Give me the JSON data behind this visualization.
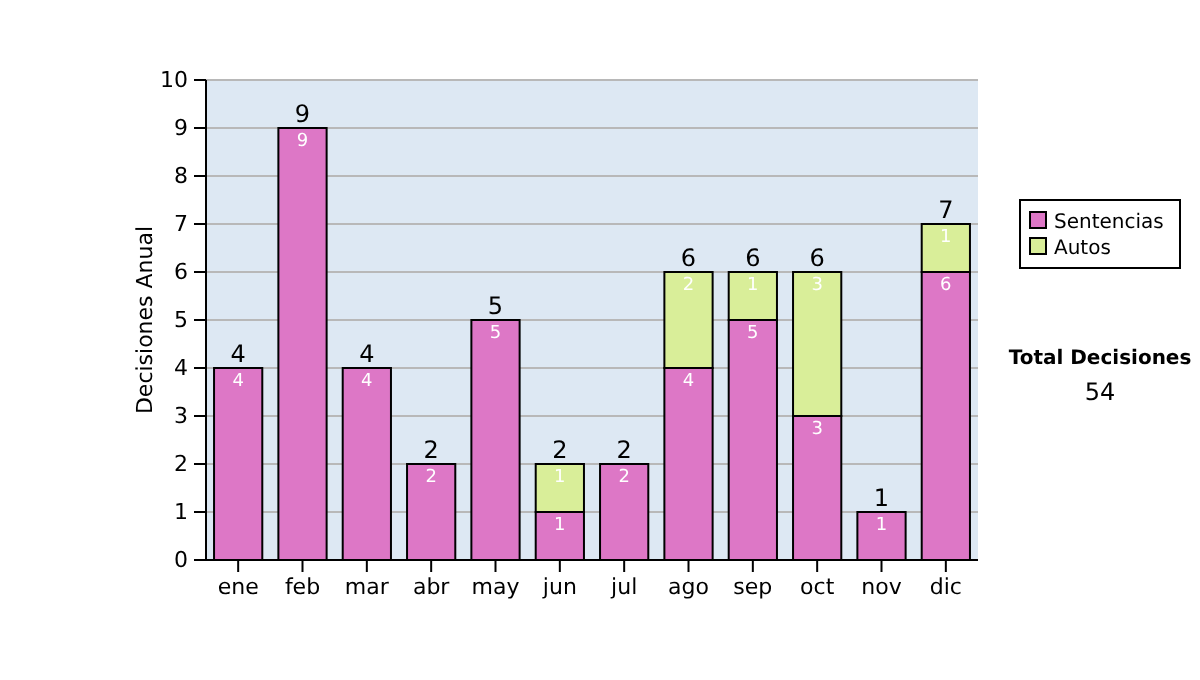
{
  "chart_data": {
    "type": "bar",
    "stacked": true,
    "ylabel": "Decisiones Anual",
    "categories": [
      "ene",
      "feb",
      "mar",
      "abr",
      "may",
      "jun",
      "jul",
      "ago",
      "sep",
      "oct",
      "nov",
      "dic"
    ],
    "series": [
      {
        "name": "Sentencias",
        "color": "#dd77c6",
        "values": [
          4,
          9,
          4,
          2,
          5,
          1,
          2,
          4,
          5,
          3,
          1,
          6
        ],
        "value_labels": [
          "4",
          "9",
          "4",
          "2",
          "5",
          "1",
          "2",
          "4",
          "5",
          "3",
          "1",
          "6"
        ]
      },
      {
        "name": "Autos",
        "color": "#d9ee99",
        "values": [
          0,
          0,
          0,
          0,
          0,
          1,
          0,
          2,
          1,
          3,
          0,
          1
        ],
        "value_labels": [
          null,
          null,
          null,
          null,
          null,
          "1",
          null,
          "2",
          "1",
          "3",
          null,
          "1"
        ]
      }
    ],
    "totals": [
      "4",
      "9",
      "4",
      "2",
      "5",
      "2",
      "2",
      "6",
      "6",
      "6",
      "1",
      "7"
    ],
    "ylim": [
      0,
      10
    ],
    "yticks": [
      0,
      1,
      2,
      3,
      4,
      5,
      6,
      7,
      8,
      9,
      10
    ],
    "grid": "y",
    "legend": "right",
    "annotations": [
      "Total Decisiones",
      "54"
    ]
  }
}
